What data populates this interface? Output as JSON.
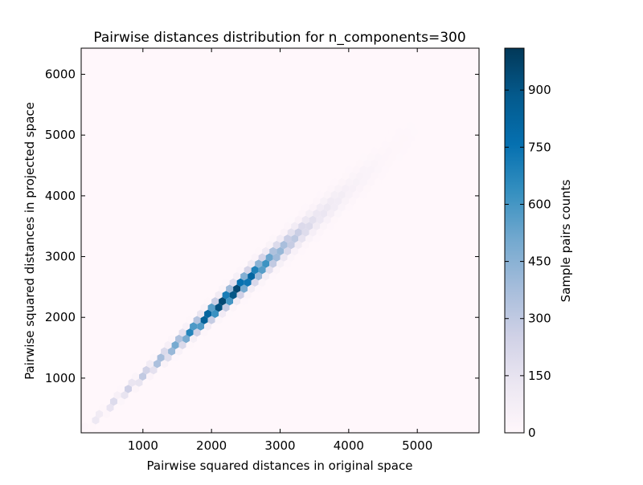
{
  "chart_data": {
    "type": "heatmap",
    "subtype": "hexbin",
    "title": "Pairwise distances distribution for n_components=300",
    "xlabel": "Pairwise squared distances in original space",
    "ylabel": "Pairwise squared distances in projected space",
    "xlim": [
      100,
      5900
    ],
    "ylim": [
      100,
      6430
    ],
    "xticks": [
      1000,
      2000,
      3000,
      4000,
      5000
    ],
    "yticks": [
      1000,
      2000,
      3000,
      4000,
      5000,
      6000
    ],
    "grid": false,
    "colormap": "PuBu",
    "colorbar": {
      "label": "Sample pairs counts",
      "range": [
        0,
        1010
      ],
      "ticks": [
        0,
        150,
        300,
        450,
        600,
        750,
        900
      ],
      "colors": [
        "#fff7fb",
        "#ece7f2",
        "#d0d1e6",
        "#a6bddb",
        "#74a9cf",
        "#3690c0",
        "#0570b0",
        "#045a8d",
        "#023858"
      ]
    },
    "density_ridge": {
      "description_points_x": [
        250,
        500,
        1000,
        1500,
        2000,
        2300,
        2600,
        3000,
        3500,
        4000,
        4500
      ],
      "center_y": [
        260,
        520,
        1040,
        1560,
        2080,
        2390,
        2700,
        3100,
        3600,
        4100,
        4600
      ],
      "peak_counts": [
        120,
        200,
        300,
        520,
        950,
        1000,
        800,
        420,
        160,
        60,
        15
      ]
    }
  }
}
